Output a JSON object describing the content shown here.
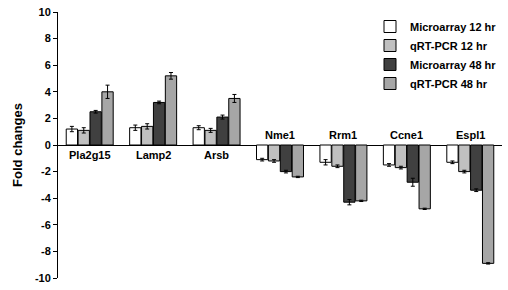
{
  "chart_data": {
    "type": "bar",
    "y_label": "Fold changes",
    "categories": [
      "Pla2g15",
      "Lamp2",
      "Arsb",
      "Nme1",
      "Rrm1",
      "Ccne1",
      "Espl1"
    ],
    "series": [
      {
        "name": "Microarray 12 hr",
        "color": "#ffffff",
        "values": [
          1.2,
          1.3,
          1.3,
          -1.1,
          -1.3,
          -1.5,
          -1.3
        ],
        "errors": [
          0.2,
          0.2,
          0.15,
          0.1,
          0.2,
          0.1,
          0.1
        ]
      },
      {
        "name": "qRT-PCR 12 hr",
        "color": "#c0c0c0",
        "values": [
          1.1,
          1.4,
          1.1,
          -1.2,
          -1.6,
          -1.7,
          -2.0
        ],
        "errors": [
          0.2,
          0.2,
          0.15,
          0.1,
          0.1,
          0.1,
          0.1
        ]
      },
      {
        "name": "Microarray 48 hr",
        "color": "#404040",
        "values": [
          2.5,
          3.2,
          2.1,
          -2.0,
          -4.3,
          -2.8,
          -3.4
        ],
        "errors": [
          0.1,
          0.1,
          0.15,
          0.1,
          0.2,
          0.3,
          0.1
        ]
      },
      {
        "name": "qRT-PCR 48 hr",
        "color": "#a6a6a6",
        "values": [
          4.0,
          5.2,
          3.5,
          -2.4,
          -4.2,
          -4.8,
          -8.9
        ],
        "errors": [
          0.5,
          0.25,
          0.3,
          0.05,
          0.05,
          0.05,
          0.05
        ]
      }
    ],
    "ylim": [
      -10,
      10
    ],
    "yticks": [
      -10,
      -8,
      -6,
      -4,
      -2,
      0,
      2,
      4,
      6,
      8,
      10
    ],
    "legend": "top right",
    "grid": false
  }
}
